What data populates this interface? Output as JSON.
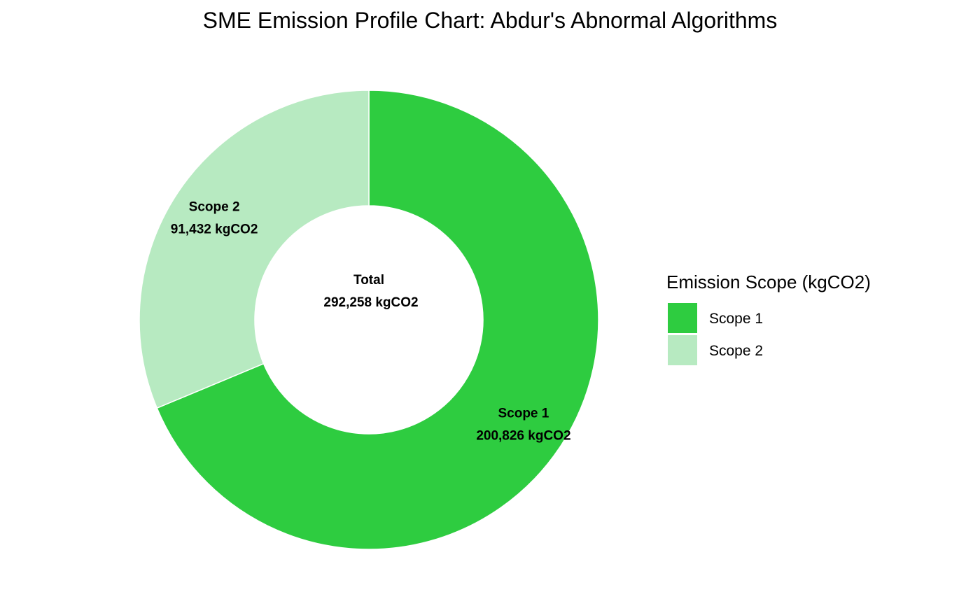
{
  "chart_data": {
    "type": "pie",
    "variant": "donut",
    "title": "SME Emission Profile Chart: Abdur's Abnormal Algorithms",
    "slices": [
      {
        "name": "Scope 1",
        "value": 200826,
        "value_label": "200,826 kgCO2",
        "color": "#2ecc40"
      },
      {
        "name": "Scope 2",
        "value": 91432,
        "value_label": "91,432 kgCO2",
        "color": "#b7eac1"
      }
    ],
    "center_label": {
      "title": "Total",
      "value": 292258,
      "value_label": "292,258 kgCO2"
    },
    "legend": {
      "title": "Emission Scope (kgCO2)",
      "position": "right",
      "entries": [
        "Scope 1",
        "Scope 2"
      ]
    }
  }
}
